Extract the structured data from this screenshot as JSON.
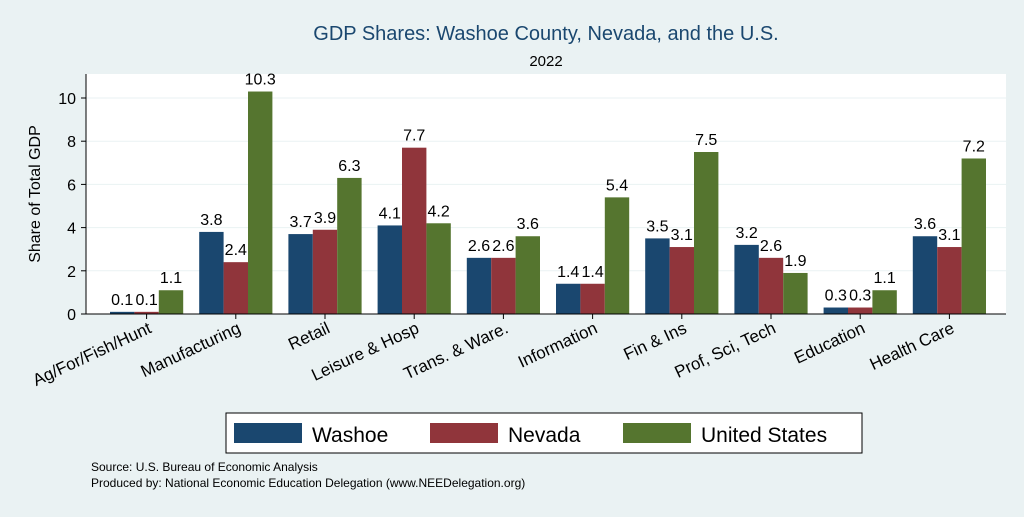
{
  "colors": {
    "background": "#eaf2f3",
    "plot_background": "#ffffff",
    "title": "#1a476f",
    "washoe": "#1a476f",
    "nevada": "#90353b",
    "united_states": "#55752f"
  },
  "chart_data": {
    "type": "bar",
    "title": "GDP Shares: Washoe County, Nevada, and the U.S.",
    "subtitle": "2022",
    "xlabel": "",
    "ylabel": "Share of Total GDP",
    "ylim": [
      0,
      11
    ],
    "yticks": [
      0,
      2,
      4,
      6,
      8,
      10
    ],
    "grid": true,
    "legend_position": "bottom",
    "categories": [
      "Ag/For/Fish/Hunt",
      "Manufacturing",
      "Retail",
      "Leisure & Hosp",
      "Trans. & Ware.",
      "Information",
      "Fin & Ins",
      "Prof, Sci, Tech",
      "Education",
      "Health Care"
    ],
    "series": [
      {
        "name": "Washoe",
        "color": "#1a476f",
        "values": [
          0.1,
          3.8,
          3.7,
          4.1,
          2.6,
          1.4,
          3.5,
          3.2,
          0.3,
          3.6
        ]
      },
      {
        "name": "Nevada",
        "color": "#90353b",
        "values": [
          0.1,
          2.4,
          3.9,
          7.7,
          2.6,
          1.4,
          3.1,
          2.6,
          0.3,
          3.1
        ]
      },
      {
        "name": "United States",
        "color": "#55752f",
        "values": [
          1.1,
          10.3,
          6.3,
          4.2,
          3.6,
          5.4,
          7.5,
          1.9,
          1.1,
          7.2
        ]
      }
    ]
  },
  "footer": {
    "source": "Source: U.S. Bureau of Economic Analysis",
    "produced_by": "Produced by: National Economic Education Delegation (www.NEEDelegation.org)"
  }
}
